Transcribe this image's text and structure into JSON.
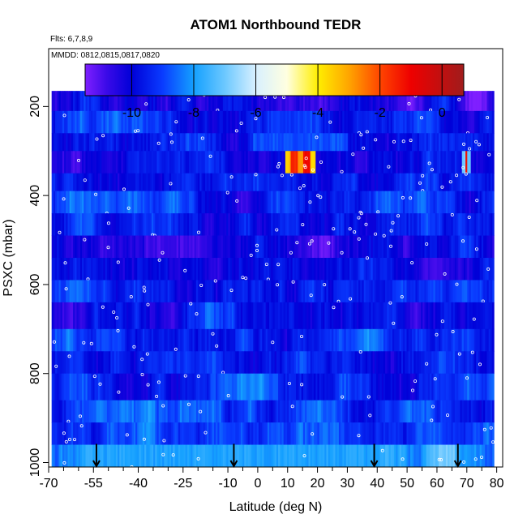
{
  "chart_data": {
    "type": "heatmap",
    "title": "ATOM1 Northbound TEDR",
    "flights_label": "Flts: 6,7,8,9",
    "dates_label": "MMDD: 0812,0815,0817,0820",
    "xlabel": "Latitude (deg N)",
    "ylabel": "PSXC (mbar)",
    "xlim": [
      -70,
      82
    ],
    "ylim": [
      1010,
      70
    ],
    "y_reversed": true,
    "grid": false,
    "x_ticks": [
      -70,
      -55,
      -40,
      -25,
      -10,
      0,
      10,
      20,
      30,
      40,
      50,
      60,
      70,
      80
    ],
    "x_tick_labels": [
      "-70",
      "-55",
      "-40",
      "-25",
      "-10",
      "0",
      "10",
      "20",
      "30",
      "40",
      "50",
      "60",
      "70",
      "80"
    ],
    "x_minor_ticks": [
      -65,
      -60,
      -50,
      -45,
      -35,
      -30,
      -20,
      -15,
      -5,
      5,
      15,
      25,
      35,
      45,
      55,
      65,
      75
    ],
    "y_ticks": [
      200,
      400,
      600,
      800,
      1000
    ],
    "y_tick_labels": [
      "200",
      "400",
      "600",
      "800",
      "1000"
    ],
    "colorbar": {
      "min": -11.5,
      "max": 0.7,
      "ticks": [
        -10,
        -8,
        -6,
        -4,
        -2,
        0
      ],
      "tick_labels": [
        "-10",
        "-8",
        "-6",
        "-4",
        "-2",
        "0"
      ],
      "colors": [
        [
          -11.5,
          "#7f1fff"
        ],
        [
          -10.8,
          "#3a0ae8"
        ],
        [
          -10.0,
          "#0000d8"
        ],
        [
          -9.0,
          "#0a3cff"
        ],
        [
          -8.0,
          "#14a0ff"
        ],
        [
          -7.0,
          "#6cc8ff"
        ],
        [
          -6.0,
          "#d8f0ff"
        ],
        [
          -5.0,
          "#ffffe0"
        ],
        [
          -4.0,
          "#ffee00"
        ],
        [
          -3.0,
          "#ffa500"
        ],
        [
          -2.0,
          "#ff4500"
        ],
        [
          -1.0,
          "#ee0000"
        ],
        [
          0.0,
          "#c01010"
        ],
        [
          0.7,
          "#a01c1c"
        ]
      ]
    },
    "heatmap": {
      "lat_range": [
        -69,
        79
      ],
      "pressure_rows": [
        [
          165,
          210
        ],
        [
          210,
          260
        ],
        [
          260,
          300
        ],
        [
          300,
          350
        ],
        [
          350,
          390
        ],
        [
          390,
          440
        ],
        [
          440,
          490
        ],
        [
          490,
          540
        ],
        [
          540,
          590
        ],
        [
          590,
          640
        ],
        [
          640,
          700
        ],
        [
          700,
          750
        ],
        [
          750,
          800
        ],
        [
          800,
          860
        ],
        [
          860,
          910
        ],
        [
          910,
          960
        ],
        [
          960,
          1010
        ]
      ],
      "row_base_values": [
        -10.3,
        -9.4,
        -9.8,
        -10.0,
        -9.6,
        -9.3,
        -9.7,
        -10.1,
        -9.9,
        -9.5,
        -9.8,
        -9.2,
        -9.6,
        -9.4,
        -9.3,
        -8.9,
        -8.1
      ],
      "features": [
        {
          "row": 3,
          "lat": [
            9,
            19
          ],
          "values": [
            -3.5,
            -1.5,
            -3.0,
            -1.0,
            -3.8
          ]
        },
        {
          "row": 3,
          "lat": [
            68,
            71
          ],
          "values": [
            -7.0,
            -1.0,
            -7.0
          ]
        },
        {
          "row": 2,
          "lat": [
            -2,
            30
          ],
          "values": [
            -8.8
          ]
        },
        {
          "row": 7,
          "lat": [
            -38,
            -20
          ],
          "values": [
            -10.8
          ]
        },
        {
          "row": 16,
          "lat": [
            -55,
            40
          ],
          "values": [
            -7.9
          ]
        }
      ]
    },
    "arrows_lat": [
      -54,
      -8,
      39,
      67
    ],
    "arrow_pressure": 958
  }
}
